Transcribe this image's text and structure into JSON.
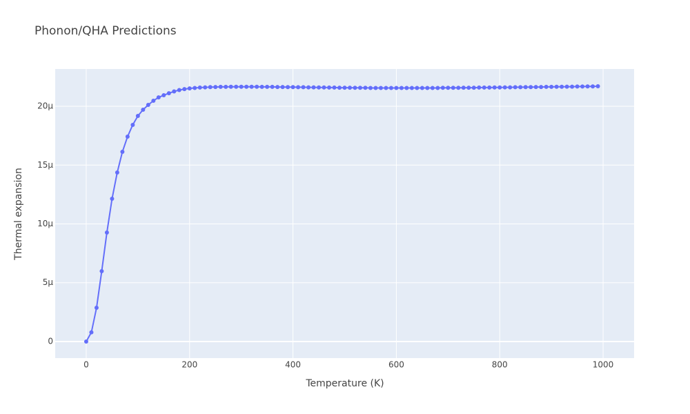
{
  "chart_data": {
    "type": "line",
    "title": "Phonon/QHA Predictions",
    "x_label": "Temperature (K)",
    "y_label": "Thermal expansion",
    "color": "#636efa",
    "grid": true,
    "mode": "lines+markers",
    "x": [
      0,
      10,
      20,
      30,
      40,
      50,
      60,
      70,
      80,
      90,
      100,
      110,
      120,
      130,
      140,
      150,
      160,
      170,
      180,
      190,
      200,
      210,
      220,
      230,
      240,
      250,
      260,
      270,
      280,
      290,
      300,
      310,
      320,
      330,
      340,
      350,
      360,
      370,
      380,
      390,
      400,
      410,
      420,
      430,
      440,
      450,
      460,
      470,
      480,
      490,
      500,
      510,
      520,
      530,
      540,
      550,
      560,
      570,
      580,
      590,
      600,
      610,
      620,
      630,
      640,
      650,
      660,
      670,
      680,
      690,
      700,
      710,
      720,
      730,
      740,
      750,
      760,
      770,
      780,
      790,
      800,
      810,
      820,
      830,
      840,
      850,
      860,
      870,
      880,
      890,
      900,
      910,
      920,
      930,
      940,
      950,
      960,
      970,
      980,
      990
    ],
    "values": [
      0,
      7.8e-07,
      2.87e-06,
      5.98e-06,
      9.27e-06,
      1.214e-05,
      1.437e-05,
      1.613e-05,
      1.742e-05,
      1.842e-05,
      1.918e-05,
      1.971e-05,
      2.012e-05,
      2.047e-05,
      2.076e-05,
      2.094e-05,
      2.111e-05,
      2.126e-05,
      2.138e-05,
      2.146e-05,
      2.152e-05,
      2.156e-05,
      2.159e-05,
      2.161e-05,
      2.163e-05,
      2.164e-05,
      2.165e-05,
      2.165e-05,
      2.166e-05,
      2.166e-05,
      2.166e-05,
      2.166e-05,
      2.166e-05,
      2.166e-05,
      2.165e-05,
      2.165e-05,
      2.165e-05,
      2.164e-05,
      2.164e-05,
      2.163e-05,
      2.163e-05,
      2.162e-05,
      2.162e-05,
      2.161e-05,
      2.161e-05,
      2.16e-05,
      2.16e-05,
      2.159e-05,
      2.159e-05,
      2.158e-05,
      2.158e-05,
      2.158e-05,
      2.157e-05,
      2.157e-05,
      2.157e-05,
      2.156e-05,
      2.156e-05,
      2.156e-05,
      2.156e-05,
      2.156e-05,
      2.156e-05,
      2.156e-05,
      2.156e-05,
      2.156e-05,
      2.156e-05,
      2.156e-05,
      2.156e-05,
      2.156e-05,
      2.156e-05,
      2.157e-05,
      2.157e-05,
      2.157e-05,
      2.157e-05,
      2.158e-05,
      2.158e-05,
      2.158e-05,
      2.159e-05,
      2.159e-05,
      2.159e-05,
      2.16e-05,
      2.16e-05,
      2.161e-05,
      2.161e-05,
      2.162e-05,
      2.162e-05,
      2.163e-05,
      2.163e-05,
      2.164e-05,
      2.164e-05,
      2.165e-05,
      2.165e-05,
      2.166e-05,
      2.166e-05,
      2.167e-05,
      2.167e-05,
      2.168e-05,
      2.168e-05,
      2.169e-05,
      2.169e-05,
      2.17e-05
    ],
    "xlim": [
      -60,
      1060
    ],
    "xticks": [
      0,
      200,
      400,
      600,
      800,
      1000
    ],
    "ylim": [
      -1.41e-06,
      2.317e-05
    ],
    "yticks": [
      0,
      {
        "value": 5e-06,
        "label": "5μ"
      },
      {
        "value": 1e-05,
        "label": "10μ"
      },
      {
        "value": 1.5e-05,
        "label": "15μ"
      },
      {
        "value": 2e-05,
        "label": "20μ"
      }
    ]
  }
}
